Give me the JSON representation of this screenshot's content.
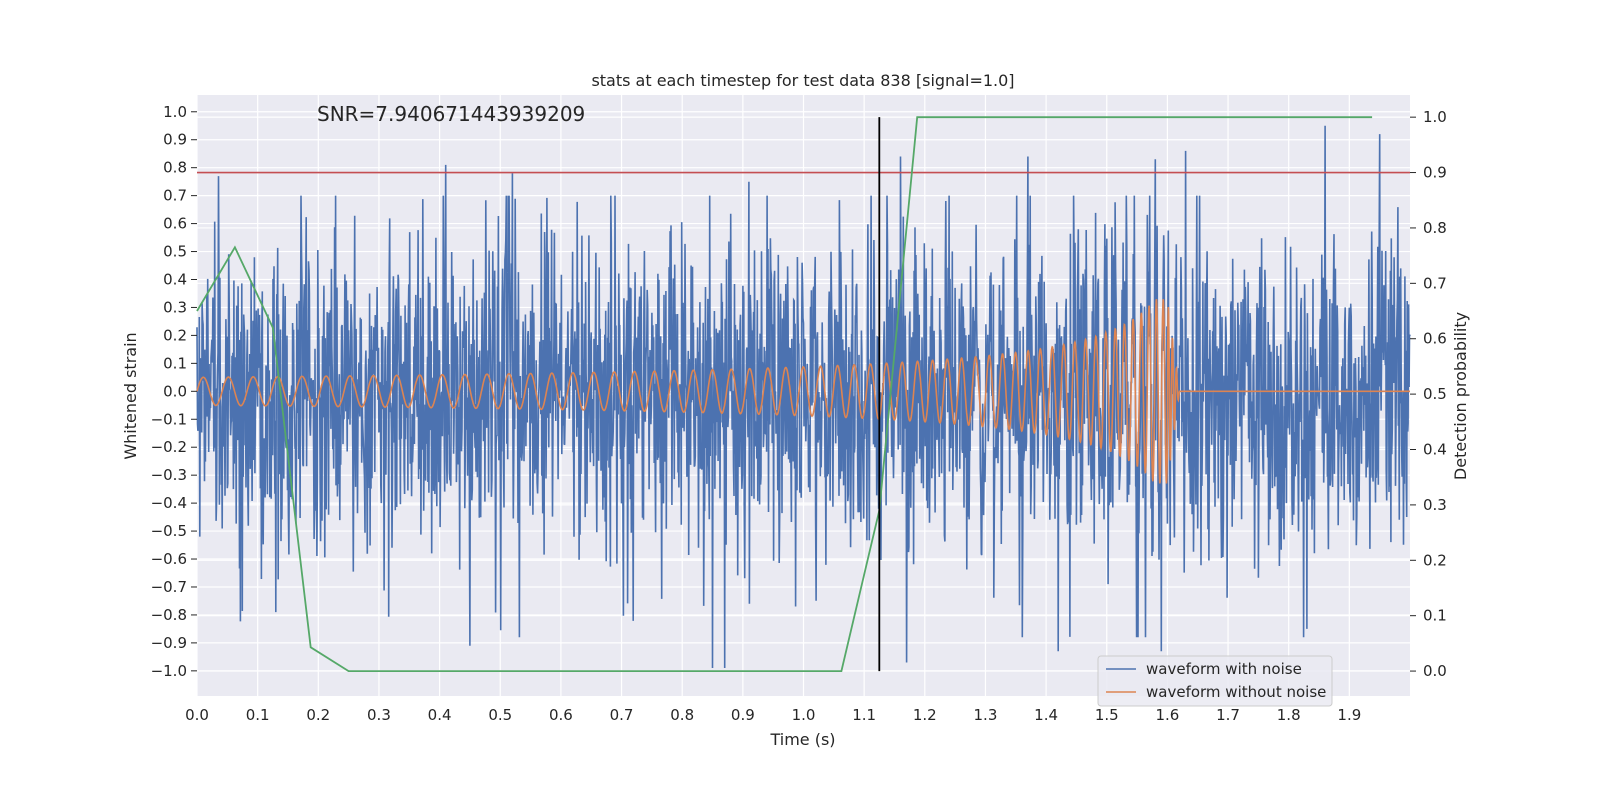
{
  "chart_data": {
    "type": "line",
    "title": "stats at each timestep for test data 838 [signal=1.0]",
    "annotation": "SNR=7.940671443939209",
    "xlabel": "Time (s)",
    "ylabel": "Whitened strain",
    "y2label": "Detection probability",
    "xlim": [
      0.0,
      2.0
    ],
    "ylim": [
      -1.09,
      1.06
    ],
    "y2lim": [
      -0.045,
      1.04
    ],
    "x_ticks": [
      0.0,
      0.1,
      0.2,
      0.3,
      0.4,
      0.5,
      0.6,
      0.7,
      0.8,
      0.9,
      1.0,
      1.1,
      1.2,
      1.3,
      1.4,
      1.5,
      1.6,
      1.7,
      1.8,
      1.9
    ],
    "y_ticks": [
      1.0,
      0.9,
      0.8,
      0.7,
      0.6,
      0.5,
      0.4,
      0.3,
      0.2,
      0.1,
      0.0,
      -0.1,
      -0.2,
      -0.3,
      -0.4,
      -0.5,
      -0.6,
      -0.7,
      -0.8,
      -0.9,
      -1.0
    ],
    "y2_ticks": [
      0.0,
      0.1,
      0.2,
      0.3,
      0.4,
      0.5,
      0.6,
      0.7,
      0.8,
      0.9,
      1.0
    ],
    "threshold_line": {
      "y2": 0.9,
      "color": "#c44e52"
    },
    "vertical_marker": {
      "x": 1.125,
      "y2_range": [
        0.0,
        1.0
      ],
      "color": "#000000"
    },
    "grid": true,
    "legend_position": "bottom-right",
    "series": [
      {
        "name": "waveform with noise",
        "color": "#4c72b0",
        "axis": "left",
        "description": "dense noisy strain, amplitude mostly within +/-0.6, peaks to about +/-0.95",
        "noise_sigma": 0.28,
        "notable_peaks": [
          {
            "x": 0.035,
            "y": 0.77
          },
          {
            "x": 0.41,
            "y": 0.81
          },
          {
            "x": 0.52,
            "y": 0.78
          },
          {
            "x": 0.91,
            "y": 0.75
          },
          {
            "x": 1.16,
            "y": 0.84
          },
          {
            "x": 1.37,
            "y": 0.84
          },
          {
            "x": 1.58,
            "y": 0.83
          },
          {
            "x": 1.63,
            "y": 0.86
          },
          {
            "x": 1.86,
            "y": 0.95
          },
          {
            "x": 1.95,
            "y": 0.92
          },
          {
            "x": 0.13,
            "y": -0.79
          },
          {
            "x": 0.45,
            "y": -0.91
          },
          {
            "x": 0.85,
            "y": -0.99
          },
          {
            "x": 0.87,
            "y": -0.99
          },
          {
            "x": 1.17,
            "y": -0.97
          },
          {
            "x": 1.42,
            "y": -0.93
          },
          {
            "x": 1.59,
            "y": -0.93
          },
          {
            "x": 1.83,
            "y": -0.85
          }
        ]
      },
      {
        "name": "waveform without noise",
        "color": "#dd8452",
        "axis": "left",
        "description": "chirp signal growing in frequency and amplitude, merging near 1.6 s, flat after",
        "chirp": {
          "start": 0.0,
          "merger": 1.6,
          "end": 2.0,
          "start_amplitude": 0.05,
          "peak_amplitude": 0.33,
          "start_cycles_per_s": 40
        }
      },
      {
        "name": "detection probability",
        "color": "#55a868",
        "axis": "right",
        "x": [
          0.0,
          0.0625,
          0.125,
          0.1875,
          0.25,
          0.3125,
          0.375,
          0.4375,
          0.5,
          0.5625,
          0.625,
          0.6875,
          0.75,
          0.8125,
          0.875,
          0.9375,
          1.0,
          1.0625,
          1.125,
          1.1875,
          1.25,
          1.3125,
          1.375,
          1.4375,
          1.5,
          1.5625,
          1.625,
          1.6875,
          1.75,
          1.8125,
          1.875,
          1.9375
        ],
        "values": [
          0.65,
          0.765,
          0.62,
          0.043,
          0.0,
          0.0,
          0.0,
          0.0,
          0.0,
          0.0,
          0.0,
          0.0,
          0.0,
          0.0,
          0.0,
          0.0,
          0.0,
          0.0,
          0.29,
          1.0,
          1.0,
          1.0,
          1.0,
          1.0,
          1.0,
          1.0,
          1.0,
          1.0,
          1.0,
          1.0,
          1.0,
          1.0
        ]
      }
    ]
  }
}
